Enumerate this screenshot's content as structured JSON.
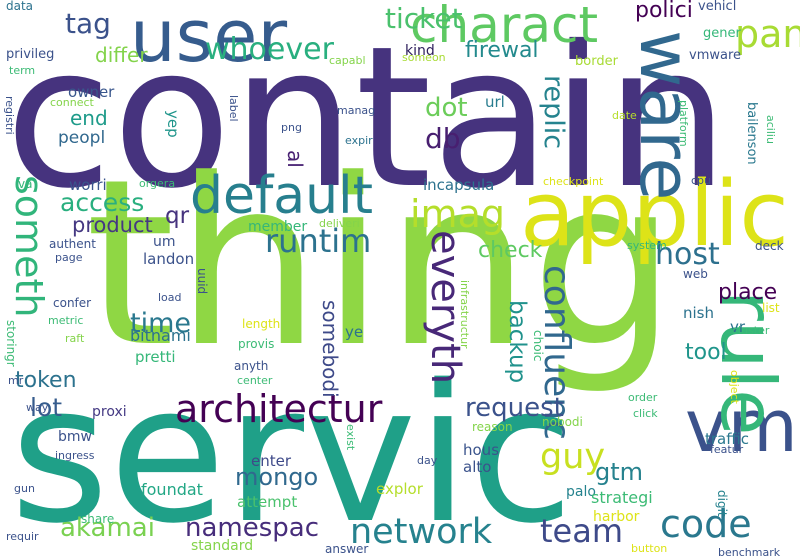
{
  "cloud": {
    "words": [
      {
        "text": "contain",
        "color": "#46337e"
      },
      {
        "text": "thing",
        "color": "#8fd744"
      },
      {
        "text": "servic",
        "color": "#1fa088"
      },
      {
        "text": "applic",
        "color": "#dde318"
      },
      {
        "text": "user",
        "color": "#365c8d"
      },
      {
        "text": "charact",
        "color": "#5ec962"
      },
      {
        "text": "vm",
        "color": "#3b528b"
      },
      {
        "text": "default",
        "color": "#277f8e"
      },
      {
        "text": "rule",
        "color": "#35b779"
      },
      {
        "text": "ware",
        "color": "#31688e"
      },
      {
        "text": "imag",
        "color": "#b5de2b"
      },
      {
        "text": "architectur",
        "color": "#440154"
      },
      {
        "text": "network",
        "color": "#26828e"
      },
      {
        "text": "code",
        "color": "#2a788e"
      },
      {
        "text": "team",
        "color": "#3e4a89"
      },
      {
        "text": "pan",
        "color": "#a8db34"
      },
      {
        "text": "whoever",
        "color": "#29af7f"
      },
      {
        "text": "ticket",
        "color": "#4ac16d"
      },
      {
        "text": "someth",
        "color": "#31b57b"
      },
      {
        "text": "everyth",
        "color": "#482878"
      },
      {
        "text": "runtim",
        "color": "#2c728e"
      },
      {
        "text": "confluenc",
        "color": "#31688e"
      },
      {
        "text": "guy",
        "color": "#c8e020"
      },
      {
        "text": "mongo",
        "color": "#30698e"
      },
      {
        "text": "namespac",
        "color": "#472d7b"
      },
      {
        "text": "akamai",
        "color": "#7ad151"
      },
      {
        "text": "access",
        "color": "#29af7f"
      },
      {
        "text": "request",
        "color": "#3b528b"
      },
      {
        "text": "host",
        "color": "#2d708e"
      },
      {
        "text": "tag",
        "color": "#3b528b"
      },
      {
        "text": "differ",
        "color": "#83d34b"
      },
      {
        "text": "firewal",
        "color": "#238a8d"
      },
      {
        "text": "end",
        "color": "#1e9b8a"
      },
      {
        "text": "dot",
        "color": "#6ccd5a"
      },
      {
        "text": "db",
        "color": "#481f70"
      },
      {
        "text": "replic",
        "color": "#25838e"
      },
      {
        "text": "polici",
        "color": "#440154"
      },
      {
        "text": "lot",
        "color": "#365c8d"
      },
      {
        "text": "time",
        "color": "#2a788e"
      },
      {
        "text": "token",
        "color": "#2c728e"
      },
      {
        "text": "check",
        "color": "#5ec962"
      },
      {
        "text": "place",
        "color": "#440154"
      },
      {
        "text": "backup",
        "color": "#20928c"
      },
      {
        "text": "somebodi",
        "color": "#3e4a89"
      },
      {
        "text": "tool",
        "color": "#1f958b"
      },
      {
        "text": "gtm",
        "color": "#26828e"
      },
      {
        "text": "product",
        "color": "#453882"
      },
      {
        "text": "qr",
        "color": "#46337e"
      },
      {
        "text": "al",
        "color": "#482173"
      },
      {
        "text": "peopl",
        "color": "#31688e"
      },
      {
        "text": "owner",
        "color": "#39568c"
      },
      {
        "text": "yep",
        "color": "#1f958b"
      },
      {
        "text": "kind",
        "color": "#2d1e5c"
      },
      {
        "text": "url",
        "color": "#287c8e"
      },
      {
        "text": "incapsula",
        "color": "#2c728e"
      },
      {
        "text": "worri",
        "color": "#3a548c"
      },
      {
        "text": "um",
        "color": "#3b528b"
      },
      {
        "text": "landon",
        "color": "#3b528b"
      },
      {
        "text": "bitnami",
        "color": "#2c728e"
      },
      {
        "text": "pretti",
        "color": "#35b779"
      },
      {
        "text": "ye",
        "color": "#2c728e"
      },
      {
        "text": "proxi",
        "color": "#443983"
      },
      {
        "text": "bmw",
        "color": "#3b528b"
      },
      {
        "text": "foundat",
        "color": "#22a785"
      },
      {
        "text": "explor",
        "color": "#b5de2b"
      },
      {
        "text": "enter",
        "color": "#3e4a89"
      },
      {
        "text": "hous",
        "color": "#3a548c"
      },
      {
        "text": "alto",
        "color": "#3b528b"
      },
      {
        "text": "palo",
        "color": "#25838e"
      },
      {
        "text": "strategi",
        "color": "#3cbb75"
      },
      {
        "text": "traffic",
        "color": "#2a788e"
      },
      {
        "text": "nish",
        "color": "#2c728e"
      },
      {
        "text": "vr",
        "color": "#2c728e"
      },
      {
        "text": "harbor",
        "color": "#dde318"
      },
      {
        "text": "digit",
        "color": "#26828e"
      },
      {
        "text": "attempt",
        "color": "#4ac16d"
      },
      {
        "text": "standard",
        "color": "#84d44b"
      },
      {
        "text": "member",
        "color": "#35b779"
      },
      {
        "text": "privileg",
        "color": "#3b528b"
      },
      {
        "text": "vmware",
        "color": "#3b528b"
      },
      {
        "text": "vehicl",
        "color": "#3b528b"
      },
      {
        "text": "gener",
        "color": "#35b779"
      },
      {
        "text": "border",
        "color": "#a8db34"
      },
      {
        "text": "data",
        "color": "#2c728e"
      },
      {
        "text": "bailenson",
        "color": "#2a788e"
      },
      {
        "text": "cpu",
        "color": "#3b528b"
      },
      {
        "text": "checkpoint",
        "color": "#dde318"
      },
      {
        "text": "connect",
        "color": "#84d44b"
      },
      {
        "text": "registri",
        "color": "#3b528b"
      },
      {
        "text": "term",
        "color": "#3cbb75"
      },
      {
        "text": "capabl",
        "color": "#84d44b"
      },
      {
        "text": "someon",
        "color": "#a8db34"
      },
      {
        "text": "manag",
        "color": "#3b528b"
      },
      {
        "text": "label",
        "color": "#3b528b"
      },
      {
        "text": "png",
        "color": "#3b528b"
      },
      {
        "text": "expir",
        "color": "#2c728e"
      },
      {
        "text": "platform",
        "color": "#3cbb75"
      },
      {
        "text": "date",
        "color": "#b5de2b"
      },
      {
        "text": "aciliu",
        "color": "#3cbb75"
      },
      {
        "text": "va",
        "color": "#35b779"
      },
      {
        "text": "orgera",
        "color": "#3cbb75"
      },
      {
        "text": "deliveri",
        "color": "#84d44b"
      },
      {
        "text": "infrastructur",
        "color": "#84d44b"
      },
      {
        "text": "authent",
        "color": "#3b528b"
      },
      {
        "text": "page",
        "color": "#3b528b"
      },
      {
        "text": "system",
        "color": "#35b779"
      },
      {
        "text": "deck",
        "color": "#3b528b"
      },
      {
        "text": "web",
        "color": "#3b528b"
      },
      {
        "text": "uuid",
        "color": "#3b528b"
      },
      {
        "text": "load",
        "color": "#3b528b"
      },
      {
        "text": "confer",
        "color": "#3b528b"
      },
      {
        "text": "metric",
        "color": "#3cbb75"
      },
      {
        "text": "raft",
        "color": "#84d44b"
      },
      {
        "text": "storingr",
        "color": "#3cbb75"
      },
      {
        "text": "length",
        "color": "#dde318"
      },
      {
        "text": "provis",
        "color": "#3cbb75"
      },
      {
        "text": "anyth",
        "color": "#3b528b"
      },
      {
        "text": "center",
        "color": "#3cbb75"
      },
      {
        "text": "choic",
        "color": "#3cbb75"
      },
      {
        "text": "cluster",
        "color": "#3cbb75"
      },
      {
        "text": "list",
        "color": "#dde318"
      },
      {
        "text": "object",
        "color": "#dde318"
      },
      {
        "text": "mr",
        "color": "#3b528b"
      },
      {
        "text": "order",
        "color": "#3cbb75"
      },
      {
        "text": "click",
        "color": "#3cbb75"
      },
      {
        "text": "reason",
        "color": "#84d44b"
      },
      {
        "text": "nobodi",
        "color": "#84d44b"
      },
      {
        "text": "featur",
        "color": "#3b528b"
      },
      {
        "text": "way",
        "color": "#3b528b"
      },
      {
        "text": "ingress",
        "color": "#3b528b"
      },
      {
        "text": "exist",
        "color": "#3cbb75"
      },
      {
        "text": "day",
        "color": "#3b528b"
      },
      {
        "text": "gun",
        "color": "#3b528b"
      },
      {
        "text": "share",
        "color": "#3cbb75"
      },
      {
        "text": "requir",
        "color": "#3b528b"
      },
      {
        "text": "answer",
        "color": "#3b528b"
      },
      {
        "text": "button",
        "color": "#dde318"
      },
      {
        "text": "benchmark",
        "color": "#3b528b"
      }
    ]
  }
}
